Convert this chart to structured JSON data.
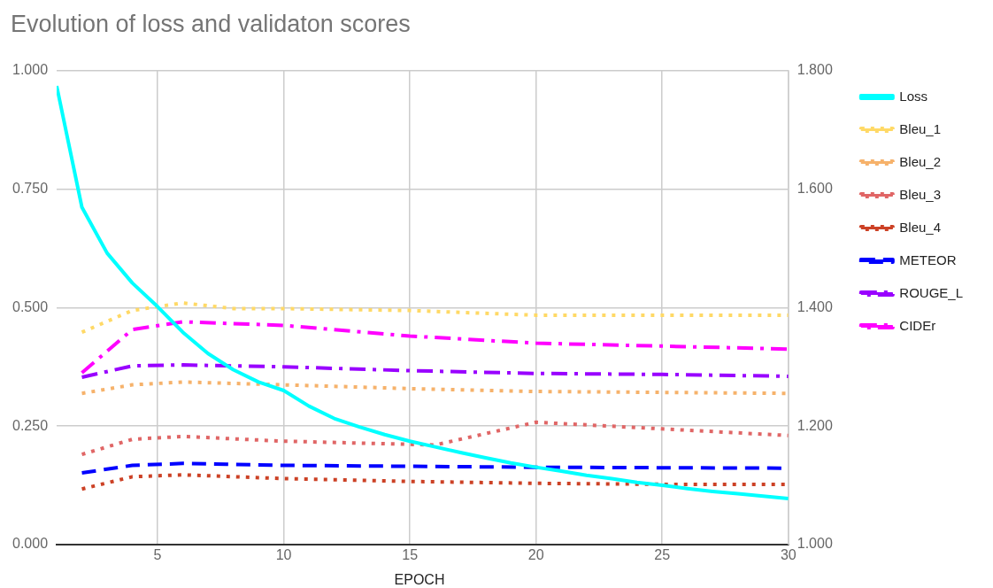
{
  "chart_data": {
    "type": "line",
    "title": "Evolution of loss and validaton scores",
    "xlabel": "EPOCH",
    "xlim": [
      1,
      30
    ],
    "xticks": [
      5,
      10,
      15,
      20,
      25,
      30
    ],
    "ylim": [
      0,
      1
    ],
    "yticks": [
      {
        "value": 0,
        "label": "0.000"
      },
      {
        "value": 0.25,
        "label": "0.250"
      },
      {
        "value": 0.5,
        "label": "0.500"
      },
      {
        "value": 0.75,
        "label": "0.750"
      },
      {
        "value": 1,
        "label": "1.000"
      }
    ],
    "y2lim": [
      1,
      1.8
    ],
    "y2ticks": [
      {
        "value": 1,
        "label": "1.000"
      },
      {
        "value": 1.2,
        "label": "1.200"
      },
      {
        "value": 1.4,
        "label": "1.400"
      },
      {
        "value": 1.6,
        "label": "1.600"
      },
      {
        "value": 1.8,
        "label": "1.800"
      }
    ],
    "grid": true,
    "legend": "right",
    "marker": "none",
    "series": [
      {
        "name": "Loss",
        "color": "#00ffff",
        "line_style": "solid",
        "x": [
          1,
          2,
          3,
          4,
          5,
          6,
          7,
          8,
          9,
          10,
          11,
          12,
          13,
          14,
          15,
          16,
          17,
          18,
          19,
          20,
          21,
          22,
          23,
          24,
          25,
          26,
          27,
          28,
          29,
          30
        ],
        "values": [
          0.968,
          0.712,
          0.615,
          0.552,
          0.502,
          0.448,
          0.403,
          0.369,
          0.343,
          0.325,
          0.292,
          0.266,
          0.248,
          0.232,
          0.218,
          0.206,
          0.194,
          0.183,
          0.172,
          0.163,
          0.155,
          0.146,
          0.139,
          0.131,
          0.125,
          0.118,
          0.112,
          0.107,
          0.102,
          0.097
        ]
      },
      {
        "name": "Bleu_1",
        "color": "#ffd966",
        "line_style": "dotted",
        "x": [
          2,
          4,
          6,
          8,
          10,
          15,
          20,
          25,
          30
        ],
        "values": [
          0.448,
          0.494,
          0.51,
          0.498,
          0.498,
          0.494,
          0.484,
          0.484,
          0.484
        ]
      },
      {
        "name": "Bleu_2",
        "color": "#f6b26b",
        "line_style": "dotted",
        "x": [
          2,
          4,
          6,
          10,
          15,
          20,
          25,
          30
        ],
        "values": [
          0.319,
          0.337,
          0.343,
          0.337,
          0.329,
          0.323,
          0.321,
          0.319
        ]
      },
      {
        "name": "Bleu_3",
        "color": "#e06666",
        "line_style": "dotted",
        "x": [
          2,
          4,
          6,
          10,
          16,
          20,
          25,
          30
        ],
        "values": [
          0.19,
          0.222,
          0.228,
          0.218,
          0.21,
          0.258,
          0.244,
          0.23
        ]
      },
      {
        "name": "Bleu_4",
        "color": "#cc4125",
        "line_style": "dotted",
        "x": [
          2,
          4,
          6,
          10,
          15,
          20,
          25,
          30
        ],
        "values": [
          0.117,
          0.143,
          0.147,
          0.139,
          0.133,
          0.129,
          0.127,
          0.127
        ]
      },
      {
        "name": "METEOR",
        "color": "#0000ff",
        "line_style": "dashed",
        "x": [
          2,
          4,
          6,
          10,
          15,
          20,
          25,
          30
        ],
        "values": [
          0.151,
          0.167,
          0.171,
          0.167,
          0.165,
          0.163,
          0.162,
          0.161
        ]
      },
      {
        "name": "ROUGE_L",
        "color": "#9900ff",
        "line_style": "dashdot",
        "x": [
          2,
          4,
          6,
          10,
          15,
          20,
          25,
          30
        ],
        "values": [
          0.353,
          0.377,
          0.379,
          0.375,
          0.367,
          0.361,
          0.359,
          0.355
        ]
      },
      {
        "name": "CIDEr",
        "color": "#ff00ff",
        "line_style": "dashdot",
        "axis": "y2",
        "x": [
          2,
          4,
          6,
          10,
          15,
          20,
          25,
          30
        ],
        "values": [
          1.29,
          1.363,
          1.376,
          1.37,
          1.352,
          1.34,
          1.335,
          1.33
        ]
      }
    ]
  }
}
